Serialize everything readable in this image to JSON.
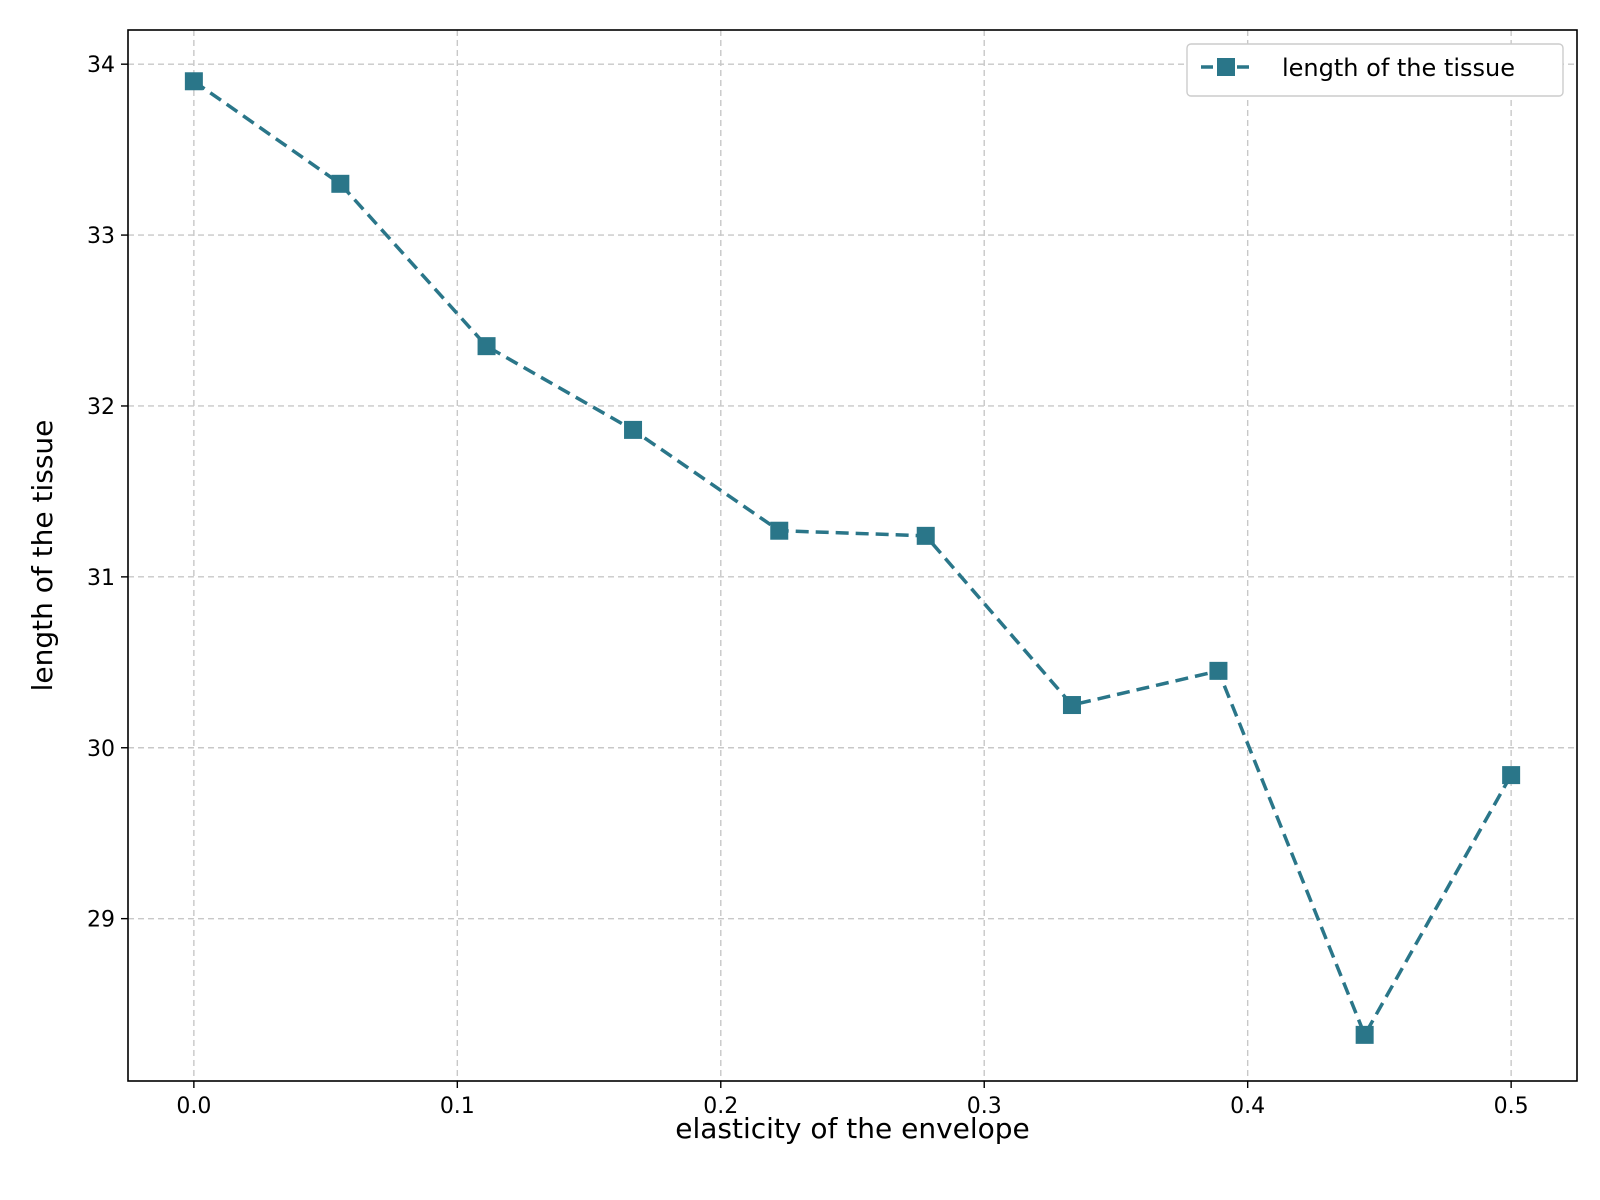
{
  "chart_data": {
    "type": "line",
    "xlabel": "elasticity of the envelope",
    "ylabel": "length of the tissue",
    "xlim": [
      -0.025,
      0.525
    ],
    "ylim": [
      28.05,
      34.2
    ],
    "xticks": [
      0.0,
      0.1,
      0.2,
      0.3,
      0.4,
      0.5
    ],
    "xtick_labels": [
      "0.0",
      "0.1",
      "0.2",
      "0.3",
      "0.4",
      "0.5"
    ],
    "yticks": [
      29,
      30,
      31,
      32,
      33,
      34
    ],
    "ytick_labels": [
      "29",
      "30",
      "31",
      "32",
      "33",
      "34"
    ],
    "grid": true,
    "legend_position": "top-right",
    "series": [
      {
        "name": "length of the tissue",
        "color": "#2a7689",
        "line_style": "dashed",
        "marker": "square",
        "x": [
          0.0,
          0.0556,
          0.1111,
          0.1667,
          0.2222,
          0.2778,
          0.3333,
          0.3889,
          0.4444,
          0.5
        ],
        "y": [
          33.9,
          33.3,
          32.35,
          31.86,
          31.27,
          31.24,
          30.25,
          30.45,
          28.32,
          29.84
        ]
      }
    ]
  }
}
